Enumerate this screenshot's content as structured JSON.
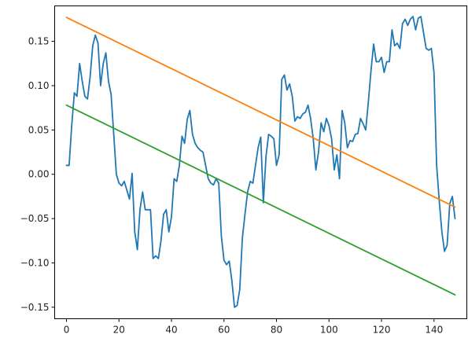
{
  "chart_data": {
    "type": "line",
    "xlim": [
      -4.5,
      152.5
    ],
    "ylim": [
      -0.163,
      0.19
    ],
    "xticks": [
      0,
      20,
      40,
      60,
      80,
      100,
      120,
      140
    ],
    "yticks": [
      -0.15,
      -0.1,
      -0.05,
      0.0,
      0.05,
      0.1,
      0.15
    ],
    "xtick_labels": [
      "0",
      "20",
      "40",
      "60",
      "80",
      "100",
      "120",
      "140"
    ],
    "ytick_labels": [
      "−0.15",
      "−0.10",
      "−0.05",
      "0.00",
      "0.05",
      "0.10",
      "0.15"
    ],
    "grid": false,
    "series": [
      {
        "color": "#1f77b4",
        "x": [
          0,
          1,
          2,
          3,
          4,
          5,
          6,
          7,
          8,
          9,
          10,
          11,
          12,
          13,
          14,
          15,
          16,
          17,
          18,
          19,
          20,
          21,
          22,
          23,
          24,
          25,
          26,
          27,
          28,
          29,
          30,
          31,
          32,
          33,
          34,
          35,
          36,
          37,
          38,
          39,
          40,
          41,
          42,
          43,
          44,
          45,
          46,
          47,
          48,
          49,
          50,
          51,
          52,
          53,
          54,
          55,
          56,
          57,
          58,
          59,
          60,
          61,
          62,
          63,
          64,
          65,
          66,
          67,
          68,
          69,
          70,
          71,
          72,
          73,
          74,
          75,
          76,
          77,
          78,
          79,
          80,
          81,
          82,
          83,
          84,
          85,
          86,
          87,
          88,
          89,
          90,
          91,
          92,
          93,
          94,
          95,
          96,
          97,
          98,
          99,
          100,
          101,
          102,
          103,
          104,
          105,
          106,
          107,
          108,
          109,
          110,
          111,
          112,
          113,
          114,
          115,
          116,
          117,
          118,
          119,
          120,
          121,
          122,
          123,
          124,
          125,
          126,
          127,
          128,
          129,
          130,
          131,
          132,
          133,
          134,
          135,
          136,
          137,
          138,
          139,
          140,
          141,
          142,
          143,
          144,
          145,
          146,
          147,
          148
        ],
        "values": [
          0.01,
          0.01,
          0.055,
          0.092,
          0.088,
          0.125,
          0.105,
          0.088,
          0.085,
          0.11,
          0.145,
          0.157,
          0.148,
          0.1,
          0.125,
          0.137,
          0.105,
          0.09,
          0.045,
          0.0,
          -0.01,
          -0.013,
          -0.008,
          -0.018,
          -0.028,
          0.001,
          -0.065,
          -0.085,
          -0.04,
          -0.02,
          -0.04,
          -0.04,
          -0.04,
          -0.095,
          -0.092,
          -0.095,
          -0.075,
          -0.045,
          -0.04,
          -0.065,
          -0.048,
          -0.005,
          -0.008,
          0.01,
          0.043,
          0.035,
          0.062,
          0.072,
          0.045,
          0.035,
          0.03,
          0.027,
          0.025,
          0.01,
          -0.005,
          -0.01,
          -0.012,
          -0.005,
          -0.01,
          -0.07,
          -0.097,
          -0.102,
          -0.098,
          -0.12,
          -0.15,
          -0.148,
          -0.13,
          -0.072,
          -0.045,
          -0.02,
          -0.008,
          -0.01,
          0.01,
          0.03,
          0.042,
          -0.032,
          0.02,
          0.045,
          0.043,
          0.04,
          0.01,
          0.022,
          0.107,
          0.112,
          0.095,
          0.102,
          0.088,
          0.06,
          0.065,
          0.063,
          0.068,
          0.07,
          0.078,
          0.063,
          0.04,
          0.005,
          0.025,
          0.058,
          0.048,
          0.063,
          0.055,
          0.04,
          0.005,
          0.022,
          -0.005,
          0.072,
          0.058,
          0.03,
          0.038,
          0.037,
          0.045,
          0.046,
          0.063,
          0.057,
          0.05,
          0.082,
          0.117,
          0.147,
          0.127,
          0.127,
          0.132,
          0.115,
          0.127,
          0.127,
          0.163,
          0.145,
          0.148,
          0.142,
          0.17,
          0.175,
          0.168,
          0.175,
          0.178,
          0.163,
          0.176,
          0.178,
          0.16,
          0.142,
          0.14,
          0.142,
          0.115,
          0.01,
          -0.03,
          -0.065,
          -0.087,
          -0.08,
          -0.033,
          -0.025,
          -0.05
        ]
      },
      {
        "color": "#ff7f0e",
        "x0": 0,
        "x1": 148,
        "y0": 0.177,
        "y1": -0.037
      },
      {
        "color": "#2ca02c",
        "x0": 0,
        "x1": 148,
        "y0": 0.078,
        "y1": -0.136
      }
    ]
  }
}
